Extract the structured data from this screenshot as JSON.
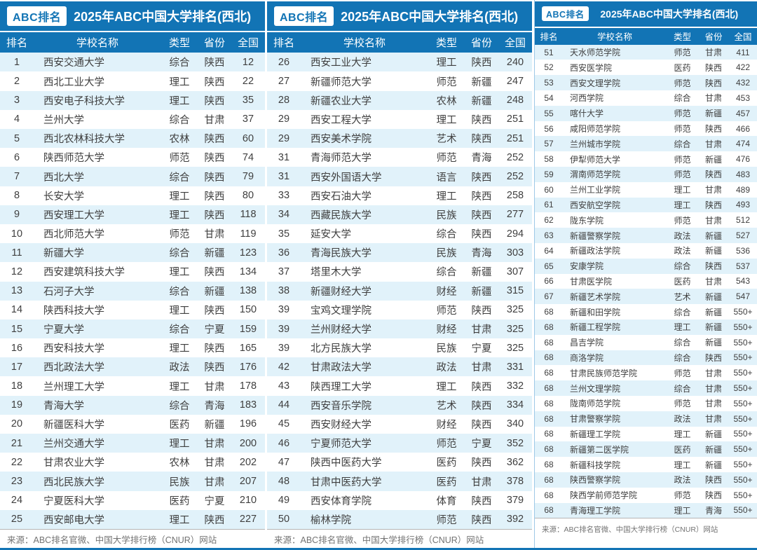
{
  "colors": {
    "header_blue": "#1274b5",
    "stripe_blue": "#e1f2fa",
    "row_text": "#3f3f3f",
    "source_gray": "#737373"
  },
  "chart_data": [
    {
      "type": "table",
      "logo": "ABC排名",
      "title": "2025年ABC中国大学排名(西北)",
      "columns": [
        "排名",
        "学校名称",
        "类型",
        "省份",
        "全国"
      ],
      "rows": [
        [
          "1",
          "西安交通大学",
          "综合",
          "陕西",
          "12"
        ],
        [
          "2",
          "西北工业大学",
          "理工",
          "陕西",
          "22"
        ],
        [
          "3",
          "西安电子科技大学",
          "理工",
          "陕西",
          "35"
        ],
        [
          "4",
          "兰州大学",
          "综合",
          "甘肃",
          "37"
        ],
        [
          "5",
          "西北农林科技大学",
          "农林",
          "陕西",
          "60"
        ],
        [
          "6",
          "陕西师范大学",
          "师范",
          "陕西",
          "74"
        ],
        [
          "7",
          "西北大学",
          "综合",
          "陕西",
          "79"
        ],
        [
          "8",
          "长安大学",
          "理工",
          "陕西",
          "80"
        ],
        [
          "9",
          "西安理工大学",
          "理工",
          "陕西",
          "118"
        ],
        [
          "10",
          "西北师范大学",
          "师范",
          "甘肃",
          "119"
        ],
        [
          "11",
          "新疆大学",
          "综合",
          "新疆",
          "123"
        ],
        [
          "12",
          "西安建筑科技大学",
          "理工",
          "陕西",
          "134"
        ],
        [
          "13",
          "石河子大学",
          "综合",
          "新疆",
          "138"
        ],
        [
          "14",
          "陕西科技大学",
          "理工",
          "陕西",
          "150"
        ],
        [
          "15",
          "宁夏大学",
          "综合",
          "宁夏",
          "159"
        ],
        [
          "16",
          "西安科技大学",
          "理工",
          "陕西",
          "165"
        ],
        [
          "17",
          "西北政法大学",
          "政法",
          "陕西",
          "176"
        ],
        [
          "18",
          "兰州理工大学",
          "理工",
          "甘肃",
          "178"
        ],
        [
          "19",
          "青海大学",
          "综合",
          "青海",
          "183"
        ],
        [
          "20",
          "新疆医科大学",
          "医药",
          "新疆",
          "196"
        ],
        [
          "21",
          "兰州交通大学",
          "理工",
          "甘肃",
          "200"
        ],
        [
          "22",
          "甘肃农业大学",
          "农林",
          "甘肃",
          "202"
        ],
        [
          "23",
          "西北民族大学",
          "民族",
          "甘肃",
          "207"
        ],
        [
          "24",
          "宁夏医科大学",
          "医药",
          "宁夏",
          "210"
        ],
        [
          "25",
          "西安邮电大学",
          "理工",
          "陕西",
          "227"
        ]
      ],
      "source": "来源：ABC排名官微、中国大学排行榜（CNUR）网站"
    },
    {
      "type": "table",
      "logo": "ABC排名",
      "title": "2025年ABC中国大学排名(西北)",
      "columns": [
        "排名",
        "学校名称",
        "类型",
        "省份",
        "全国"
      ],
      "rows": [
        [
          "26",
          "西安工业大学",
          "理工",
          "陕西",
          "240"
        ],
        [
          "27",
          "新疆师范大学",
          "师范",
          "新疆",
          "247"
        ],
        [
          "28",
          "新疆农业大学",
          "农林",
          "新疆",
          "248"
        ],
        [
          "29",
          "西安工程大学",
          "理工",
          "陕西",
          "251"
        ],
        [
          "29",
          "西安美术学院",
          "艺术",
          "陕西",
          "251"
        ],
        [
          "31",
          "青海师范大学",
          "师范",
          "青海",
          "252"
        ],
        [
          "31",
          "西安外国语大学",
          "语言",
          "陕西",
          "252"
        ],
        [
          "33",
          "西安石油大学",
          "理工",
          "陕西",
          "258"
        ],
        [
          "34",
          "西藏民族大学",
          "民族",
          "陕西",
          "277"
        ],
        [
          "35",
          "延安大学",
          "综合",
          "陕西",
          "294"
        ],
        [
          "36",
          "青海民族大学",
          "民族",
          "青海",
          "303"
        ],
        [
          "37",
          "塔里木大学",
          "综合",
          "新疆",
          "307"
        ],
        [
          "38",
          "新疆财经大学",
          "财经",
          "新疆",
          "315"
        ],
        [
          "39",
          "宝鸡文理学院",
          "师范",
          "陕西",
          "325"
        ],
        [
          "39",
          "兰州财经大学",
          "财经",
          "甘肃",
          "325"
        ],
        [
          "39",
          "北方民族大学",
          "民族",
          "宁夏",
          "325"
        ],
        [
          "42",
          "甘肃政法大学",
          "政法",
          "甘肃",
          "331"
        ],
        [
          "43",
          "陕西理工大学",
          "理工",
          "陕西",
          "332"
        ],
        [
          "44",
          "西安音乐学院",
          "艺术",
          "陕西",
          "334"
        ],
        [
          "45",
          "西安财经大学",
          "财经",
          "陕西",
          "340"
        ],
        [
          "46",
          "宁夏师范大学",
          "师范",
          "宁夏",
          "352"
        ],
        [
          "47",
          "陕西中医药大学",
          "医药",
          "陕西",
          "362"
        ],
        [
          "48",
          "甘肃中医药大学",
          "医药",
          "甘肃",
          "378"
        ],
        [
          "49",
          "西安体育学院",
          "体育",
          "陕西",
          "379"
        ],
        [
          "50",
          "榆林学院",
          "师范",
          "陕西",
          "392"
        ]
      ],
      "source": "来源：ABC排名官微、中国大学排行榜（CNUR）网站"
    },
    {
      "type": "table",
      "logo": "ABC排名",
      "title": "2025年ABC中国大学排名(西北)",
      "columns": [
        "排名",
        "学校名称",
        "类型",
        "省份",
        "全国"
      ],
      "rows": [
        [
          "51",
          "天水师范学院",
          "师范",
          "甘肃",
          "411"
        ],
        [
          "52",
          "西安医学院",
          "医药",
          "陕西",
          "422"
        ],
        [
          "53",
          "西安文理学院",
          "师范",
          "陕西",
          "432"
        ],
        [
          "54",
          "河西学院",
          "综合",
          "甘肃",
          "453"
        ],
        [
          "55",
          "喀什大学",
          "师范",
          "新疆",
          "457"
        ],
        [
          "56",
          "咸阳师范学院",
          "师范",
          "陕西",
          "466"
        ],
        [
          "57",
          "兰州城市学院",
          "综合",
          "甘肃",
          "474"
        ],
        [
          "58",
          "伊犁师范大学",
          "师范",
          "新疆",
          "476"
        ],
        [
          "59",
          "渭南师范学院",
          "师范",
          "陕西",
          "483"
        ],
        [
          "60",
          "兰州工业学院",
          "理工",
          "甘肃",
          "489"
        ],
        [
          "61",
          "西安航空学院",
          "理工",
          "陕西",
          "493"
        ],
        [
          "62",
          "陇东学院",
          "师范",
          "甘肃",
          "512"
        ],
        [
          "63",
          "新疆警察学院",
          "政法",
          "新疆",
          "527"
        ],
        [
          "64",
          "新疆政法学院",
          "政法",
          "新疆",
          "536"
        ],
        [
          "65",
          "安康学院",
          "综合",
          "陕西",
          "537"
        ],
        [
          "66",
          "甘肃医学院",
          "医药",
          "甘肃",
          "543"
        ],
        [
          "67",
          "新疆艺术学院",
          "艺术",
          "新疆",
          "547"
        ],
        [
          "68",
          "新疆和田学院",
          "综合",
          "新疆",
          "550+"
        ],
        [
          "68",
          "新疆工程学院",
          "理工",
          "新疆",
          "550+"
        ],
        [
          "68",
          "昌吉学院",
          "综合",
          "新疆",
          "550+"
        ],
        [
          "68",
          "商洛学院",
          "综合",
          "陕西",
          "550+"
        ],
        [
          "68",
          "甘肃民族师范学院",
          "师范",
          "甘肃",
          "550+"
        ],
        [
          "68",
          "兰州文理学院",
          "综合",
          "甘肃",
          "550+"
        ],
        [
          "68",
          "陇南师范学院",
          "师范",
          "甘肃",
          "550+"
        ],
        [
          "68",
          "甘肃警察学院",
          "政法",
          "甘肃",
          "550+"
        ],
        [
          "68",
          "新疆理工学院",
          "理工",
          "新疆",
          "550+"
        ],
        [
          "68",
          "新疆第二医学院",
          "医药",
          "新疆",
          "550+"
        ],
        [
          "68",
          "新疆科技学院",
          "理工",
          "新疆",
          "550+"
        ],
        [
          "68",
          "陕西警察学院",
          "政法",
          "陕西",
          "550+"
        ],
        [
          "68",
          "陕西学前师范学院",
          "师范",
          "陕西",
          "550+"
        ],
        [
          "68",
          "青海理工学院",
          "理工",
          "青海",
          "550+"
        ]
      ],
      "source": "来源：ABC排名官微、中国大学排行榜（CNUR）网站"
    }
  ]
}
